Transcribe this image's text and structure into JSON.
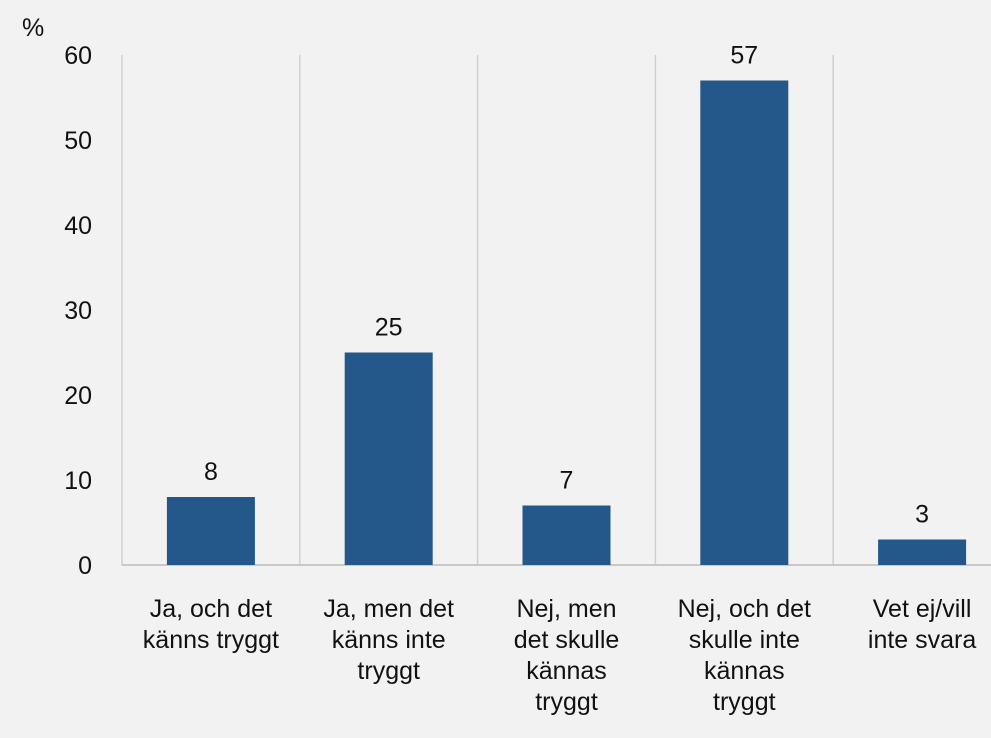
{
  "chart_data": {
    "type": "bar",
    "y_label": "%",
    "categories": [
      "Ja, och det\nkänns tryggt",
      "Ja, men det\nkänns inte\ntryggt",
      "Nej, men\ndet skulle\nkännas\ntryggt",
      "Nej, och det\nskulle inte\nkännas\ntryggt",
      "Vet ej/vill\ninte svara"
    ],
    "values": [
      8,
      25,
      7,
      57,
      3
    ],
    "color": "#24578a",
    "ylim": [
      0,
      60
    ],
    "yticks": [
      0,
      10,
      20,
      30,
      40,
      50,
      60
    ],
    "data_labels": true
  }
}
